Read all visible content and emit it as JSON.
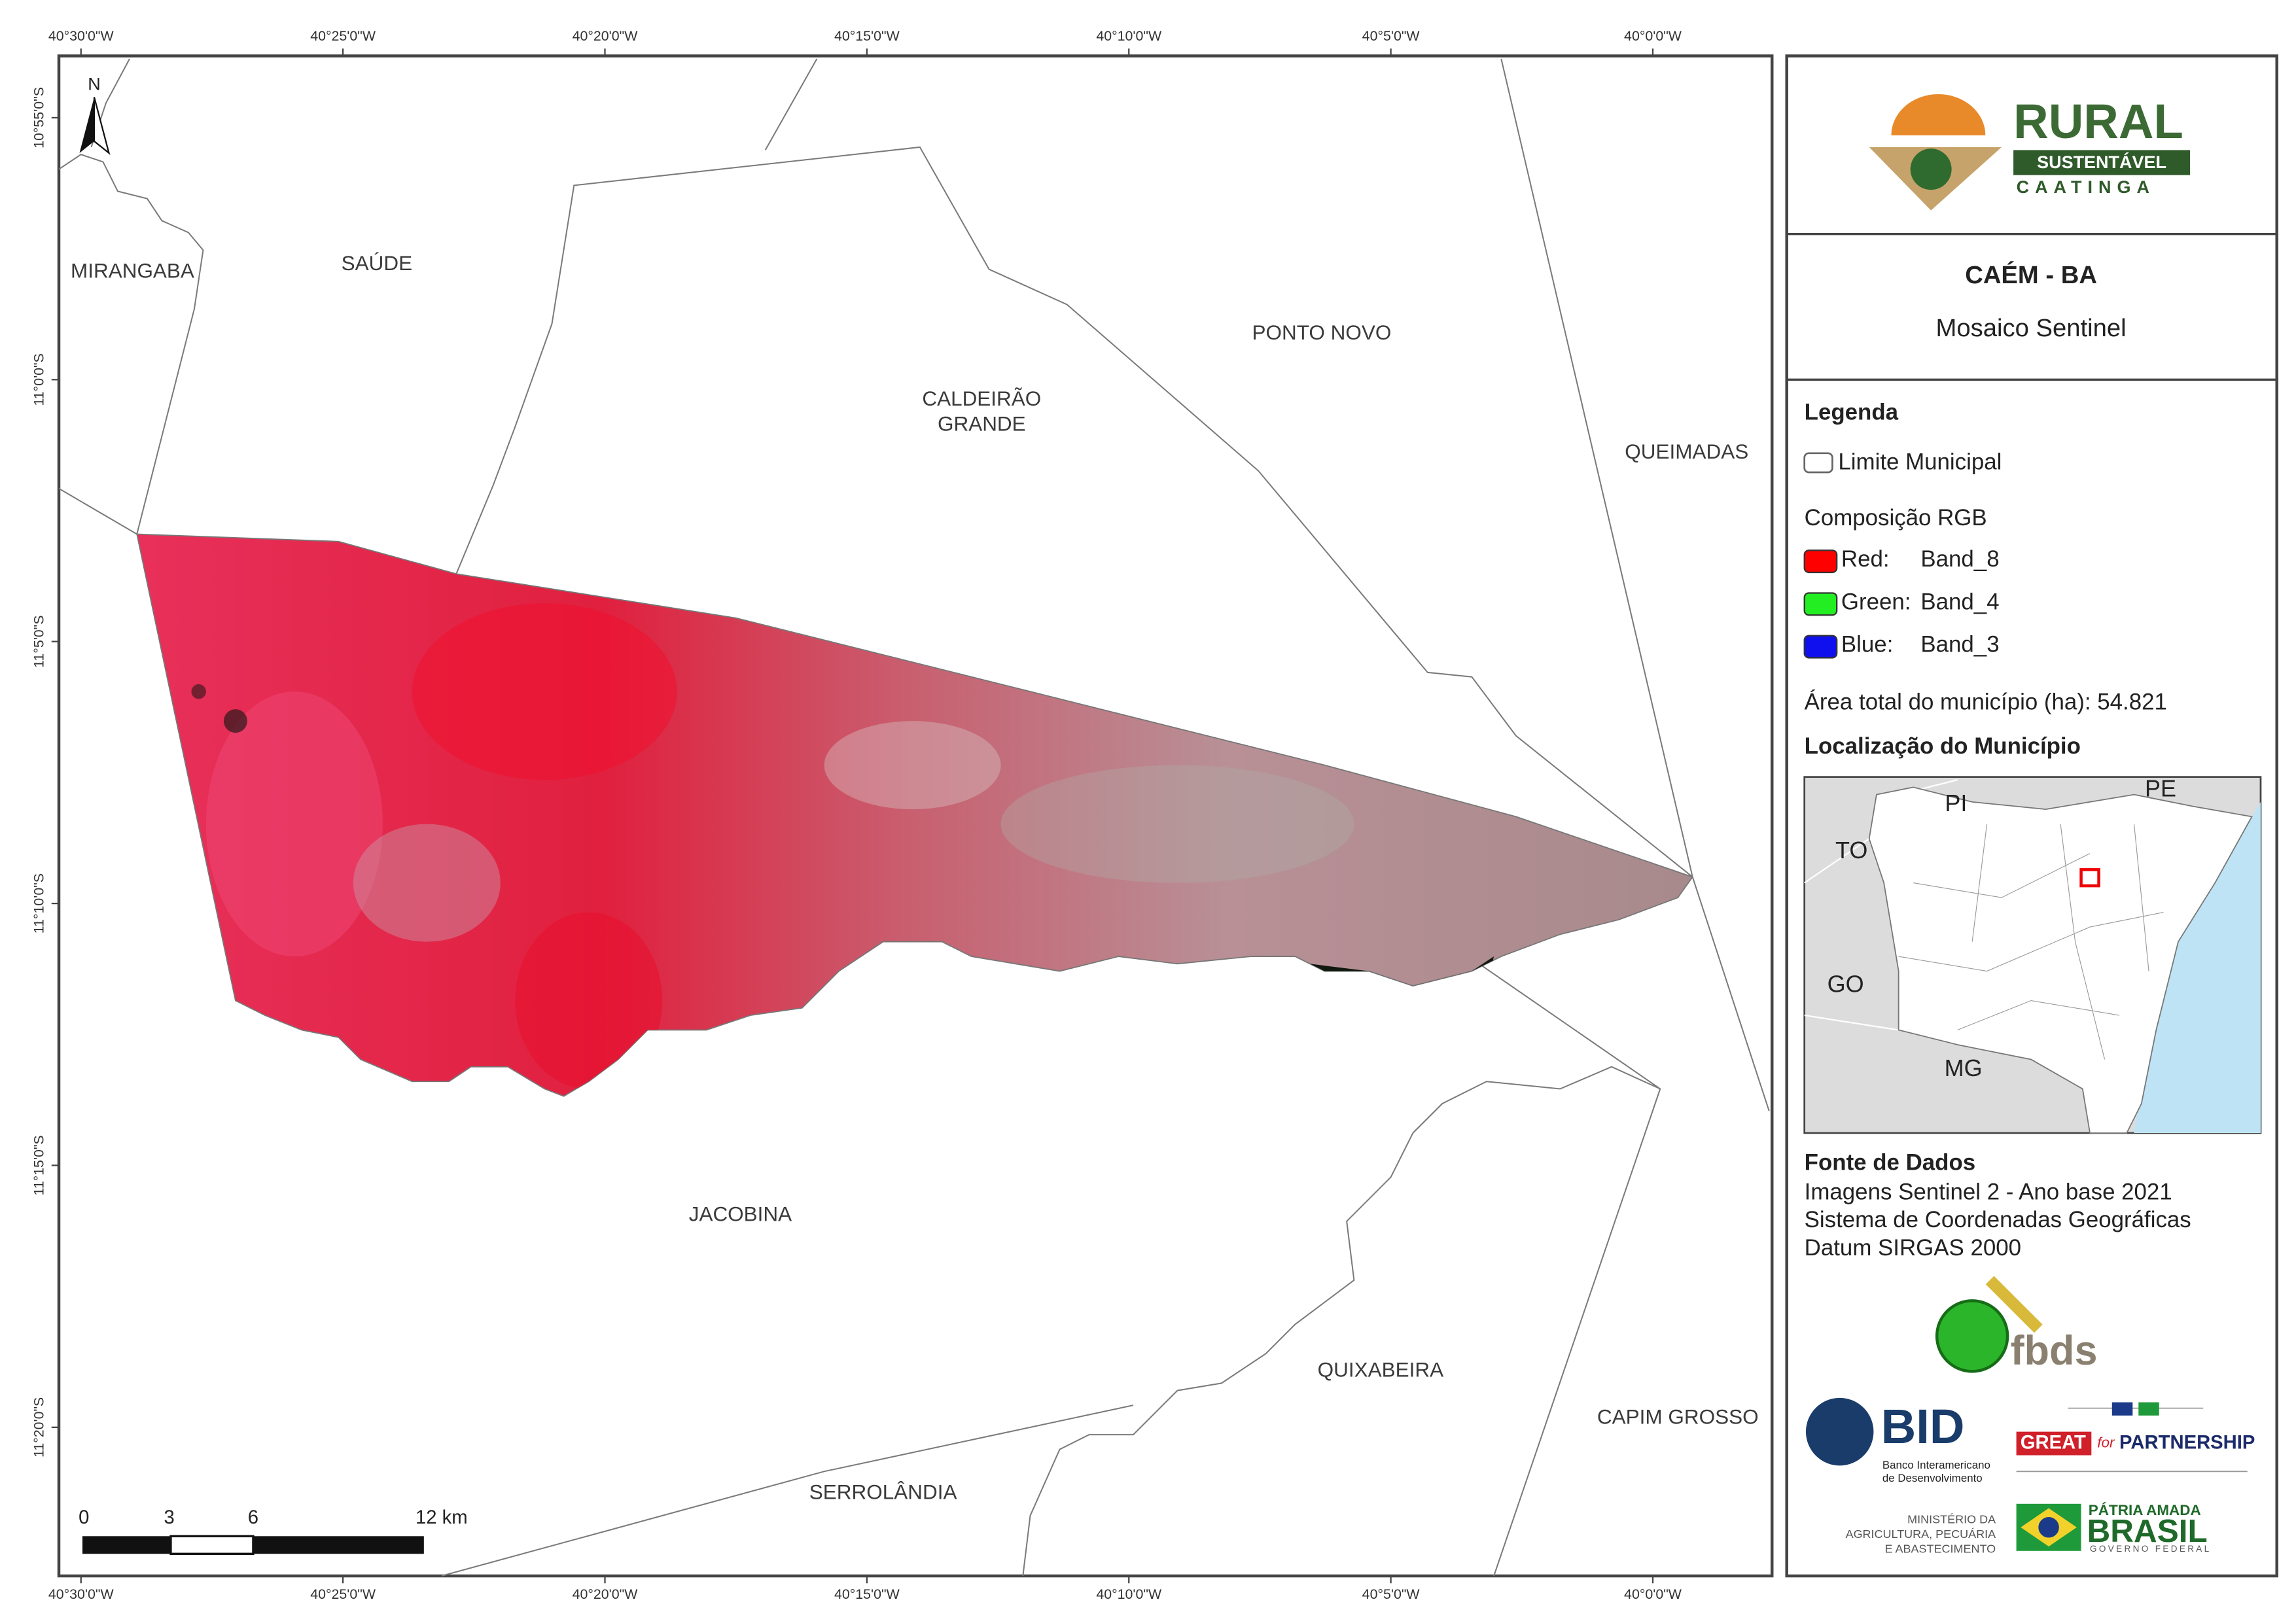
{
  "map": {
    "x_ticks": [
      "40°30'0\"W",
      "40°25'0\"W",
      "40°20'0\"W",
      "40°15'0\"W",
      "40°10'0\"W",
      "40°5'0\"W",
      "40°0'0\"W"
    ],
    "y_ticks": [
      "10°55'0\"S",
      "11°0'0\"S",
      "11°5'0\"S",
      "11°10'0\"S",
      "11°15'0\"S",
      "11°20'0\"S"
    ],
    "north": "N",
    "municipalities": [
      "MIRANGABA",
      "SAÚDE",
      "CALDEIRÃO",
      "GRANDE",
      "PONTO NOVO",
      "QUEIMADAS",
      "JACOBINA",
      "QUIXABEIRA",
      "CAPIM GROSSO",
      "SERROLÂNDIA"
    ],
    "scale_bar": [
      "0",
      "3",
      "6",
      "12 km"
    ]
  },
  "panel": {
    "logo": {
      "title": "RURAL",
      "subtitle": "SUSTENTÁVEL",
      "region": "CAATINGA"
    },
    "title": "CAÉM - BA",
    "subtitle": "Mosaico Sentinel",
    "legend": {
      "heading": "Legenda",
      "boundary": "Limite Municipal",
      "rgb_heading": "Composição RGB",
      "bands": [
        {
          "channel": "Red:",
          "band": "Band_8",
          "color": "#ff0000"
        },
        {
          "channel": "Green:",
          "band": "Band_4",
          "color": "#22ee22"
        },
        {
          "channel": "Blue:",
          "band": "Band_3",
          "color": "#1010ee"
        }
      ]
    },
    "area": "Área total do município (ha): 54.821",
    "location": {
      "heading": "Localização do Município",
      "states": [
        "PI",
        "PE",
        "TO",
        "GO",
        "MG"
      ]
    },
    "sources": {
      "heading": "Fonte de Dados",
      "lines": [
        "Imagens Sentinel 2 - Ano base 2021",
        "Sistema de Coordenadas Geográficas",
        "Datum SIRGAS 2000"
      ]
    },
    "logos": {
      "fbds": "fbds",
      "bid": "BID",
      "bid_name": [
        "Banco Interamericano",
        "de Desenvolvimento"
      ],
      "great": "GREAT",
      "great_for": "for",
      "partnership": "PARTNERSHIP",
      "ministry": [
        "MINISTÉRIO DA",
        "AGRICULTURA, PECUÁRIA",
        "E ABASTECIMENTO"
      ],
      "brasil_top": "PÁTRIA AMADA",
      "brasil": "BRASIL",
      "gov": "GOVERNO FEDERAL"
    }
  }
}
